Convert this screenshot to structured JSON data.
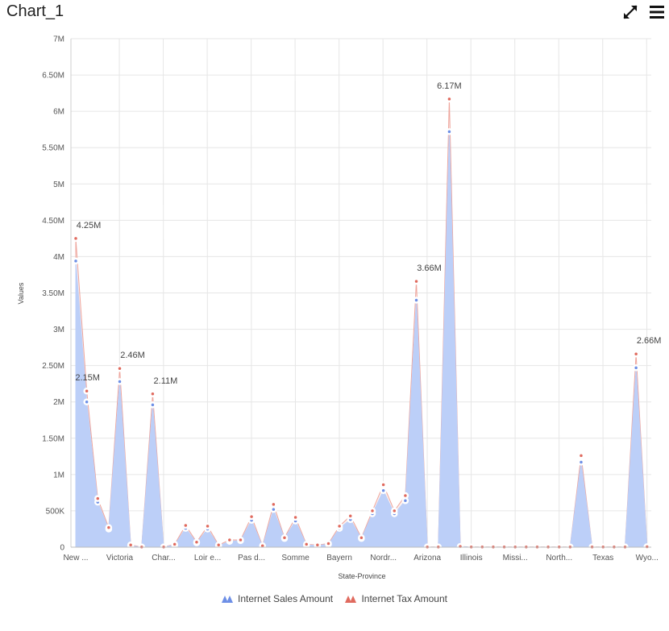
{
  "header": {
    "title": "Chart_1",
    "expand_icon": "expand-icon",
    "menu_icon": "hamburger-menu-icon"
  },
  "colors": {
    "sales": "#6d8fe6",
    "sales_fill": "#bccff8",
    "tax": "#e06a5e",
    "grid": "#e6e6e6"
  },
  "chart_data": {
    "type": "area",
    "xlabel": "State-Province",
    "ylabel": "Values",
    "ylim": [
      0,
      7000000
    ],
    "y_ticks": [
      "0",
      "500K",
      "1M",
      "1.50M",
      "2M",
      "2.50M",
      "3M",
      "3.50M",
      "4M",
      "4.50M",
      "5M",
      "5.50M",
      "6M",
      "6.50M",
      "7M"
    ],
    "y_tick_values": [
      0,
      500000,
      1000000,
      1500000,
      2000000,
      2500000,
      3000000,
      3500000,
      4000000,
      4500000,
      5000000,
      5500000,
      6000000,
      6500000,
      7000000
    ],
    "x_tick_labels": [
      {
        "index": 0,
        "label": "New ..."
      },
      {
        "index": 4,
        "label": "Victoria"
      },
      {
        "index": 8,
        "label": "Char..."
      },
      {
        "index": 12,
        "label": "Loir e..."
      },
      {
        "index": 16,
        "label": "Pas d..."
      },
      {
        "index": 20,
        "label": "Somme"
      },
      {
        "index": 24,
        "label": "Bayern"
      },
      {
        "index": 28,
        "label": "Nordr..."
      },
      {
        "index": 32,
        "label": "Arizona"
      },
      {
        "index": 36,
        "label": "Illinois"
      },
      {
        "index": 40,
        "label": "Missi..."
      },
      {
        "index": 44,
        "label": "North..."
      },
      {
        "index": 48,
        "label": "Texas"
      },
      {
        "index": 52,
        "label": "Wyo..."
      }
    ],
    "series": [
      {
        "name": "Internet Sales Amount",
        "values": [
          3940000,
          2000000,
          620000,
          250000,
          2280000,
          20000,
          2000,
          1960000,
          3000,
          30000,
          260000,
          60000,
          250000,
          20000,
          80000,
          90000,
          370000,
          10000,
          520000,
          120000,
          360000,
          30000,
          25000,
          40000,
          260000,
          380000,
          120000,
          460000,
          780000,
          460000,
          640000,
          3400000,
          2000,
          2000,
          5720000,
          8000,
          2000,
          2000,
          2000,
          2000,
          2000,
          2000,
          2000,
          2000,
          2000,
          2000,
          1170000,
          2000,
          2000,
          2000,
          2000,
          2470000,
          4000
        ]
      },
      {
        "name": "Internet Tax Amount",
        "values": [
          4250000,
          2150000,
          670000,
          270000,
          2460000,
          30000,
          3000,
          2110000,
          3000,
          40000,
          300000,
          70000,
          290000,
          30000,
          100000,
          100000,
          420000,
          20000,
          590000,
          130000,
          410000,
          40000,
          30000,
          50000,
          290000,
          430000,
          130000,
          500000,
          860000,
          500000,
          710000,
          3660000,
          3000,
          3000,
          6170000,
          10000,
          3000,
          3000,
          3000,
          3000,
          3000,
          3000,
          3000,
          3000,
          3000,
          3000,
          1260000,
          3000,
          3000,
          3000,
          3000,
          2660000,
          5000
        ]
      }
    ],
    "data_labels": [
      {
        "index": 0,
        "text": "4.25M"
      },
      {
        "index": 1,
        "text": "2.15M"
      },
      {
        "index": 4,
        "text": "2.46M"
      },
      {
        "index": 7,
        "text": "2.11M"
      },
      {
        "index": 31,
        "text": "3.66M"
      },
      {
        "index": 34,
        "text": "6.17M"
      },
      {
        "index": 51,
        "text": "2.66M"
      }
    ],
    "legend": {
      "placement": "bottom",
      "entries": [
        "Internet Sales Amount",
        "Internet Tax Amount"
      ]
    },
    "grid": true
  }
}
